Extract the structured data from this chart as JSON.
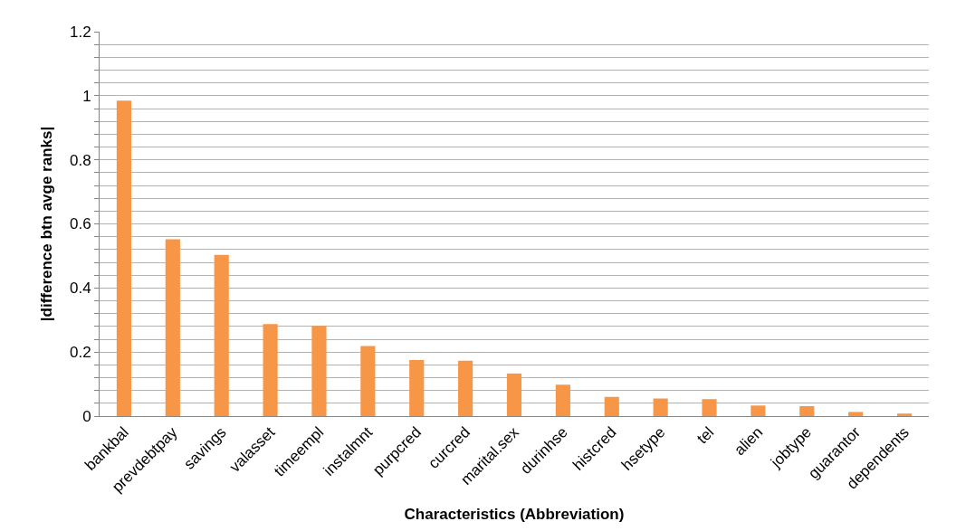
{
  "chart_data": {
    "type": "bar",
    "xlabel": "Characteristics (Abbreviation)",
    "ylabel": "|difference btn avge ranks|",
    "categories": [
      "bankbal",
      "prevdebtpay",
      "savings",
      "valasset",
      "timeempl",
      "instalmnt",
      "purpcred",
      "curcred",
      "marital.sex",
      "durinhse",
      "histcred",
      "hsetype",
      "tel",
      "alien",
      "jobtype",
      "guarantor",
      "dependents"
    ],
    "values": [
      0.985,
      0.552,
      0.503,
      0.287,
      0.282,
      0.219,
      0.175,
      0.173,
      0.133,
      0.098,
      0.06,
      0.055,
      0.053,
      0.033,
      0.031,
      0.013,
      0.008
    ],
    "color": "#f79646",
    "ylim": [
      0,
      1.2
    ],
    "yticks": [
      0,
      {
        "value": 0.04,
        "label": null
      },
      {
        "value": 0.08,
        "label": null
      },
      {
        "value": 0.12,
        "label": null
      },
      {
        "value": 0.16,
        "label": null
      },
      0.2,
      {
        "value": 0.24,
        "label": null
      },
      {
        "value": 0.28,
        "label": null
      },
      {
        "value": 0.32,
        "label": null
      },
      {
        "value": 0.36,
        "label": null
      },
      0.4,
      {
        "value": 0.44,
        "label": null
      },
      {
        "value": 0.48,
        "label": null
      },
      {
        "value": 0.52,
        "label": null
      },
      {
        "value": 0.56,
        "label": null
      },
      0.6,
      {
        "value": 0.64,
        "label": null
      },
      {
        "value": 0.68,
        "label": null
      },
      {
        "value": 0.72,
        "label": null
      },
      {
        "value": 0.76,
        "label": null
      },
      0.8,
      {
        "value": 0.84,
        "label": null
      },
      {
        "value": 0.88,
        "label": null
      },
      {
        "value": 0.92,
        "label": null
      },
      {
        "value": 0.96,
        "label": null
      },
      1,
      {
        "value": 1.04,
        "label": null
      },
      {
        "value": 1.08,
        "label": null
      },
      {
        "value": 1.12,
        "label": null
      },
      {
        "value": 1.16,
        "label": null
      },
      1.2
    ],
    "grid": "y",
    "legend": false
  }
}
